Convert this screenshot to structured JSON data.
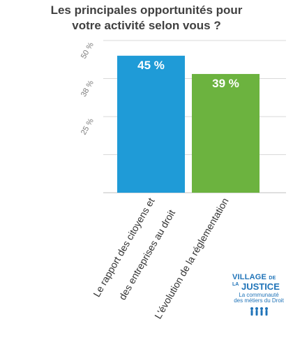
{
  "chart_data": {
    "type": "bar",
    "title_lines": [
      "Les principales opportunités pour",
      "votre activité selon vous ?"
    ],
    "categories": [
      [
        "Le rapport des citoyens et",
        "des entreprises au droit"
      ],
      [
        "L'évolution de la réglementation"
      ]
    ],
    "values": [
      45,
      39
    ],
    "value_labels": [
      "45 %",
      "39 %"
    ],
    "y_ticks": [
      {
        "value": 50,
        "label": "50 %"
      },
      {
        "value": 37.5,
        "label": "38 %"
      },
      {
        "value": 25,
        "label": "25 %"
      }
    ],
    "ylim": [
      0,
      50
    ],
    "grid": true,
    "colors": [
      "#1f9bd7",
      "#6cb33f"
    ],
    "grid_color": "#cccccc"
  },
  "logo": {
    "line1_main": "VILLAGE",
    "line1_small": "DE",
    "line2_small": "LA",
    "line2_main": "JUSTICE",
    "tagline1": "La communauté",
    "tagline2": "des métiers du Droit",
    "color": "#1f73b8"
  }
}
